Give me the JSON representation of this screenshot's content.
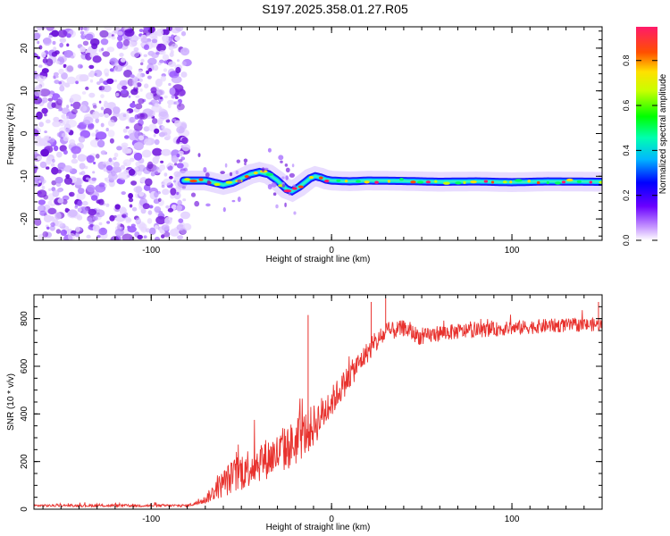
{
  "title": "S197.2025.358.01.27.R05",
  "colors": {
    "snr_line": "#e8322e",
    "noise_purple": "#7a22e0",
    "track_band": "#1a2cff"
  },
  "chart_data": [
    {
      "type": "heatmap",
      "name": "spectrogram",
      "xlabel": "Height of straight line (km)",
      "ylabel": "Frequency (Hz)",
      "xlim": [
        -165,
        150
      ],
      "ylim": [
        -25,
        25
      ],
      "x_ticks": [
        -100,
        0,
        100
      ],
      "x_tick_labels": [
        "-100",
        "0",
        "100"
      ],
      "y_ticks": [
        -20,
        -10,
        0,
        10,
        20
      ],
      "y_tick_labels": [
        "-20",
        "-10",
        "0",
        "10",
        "20"
      ],
      "noise_region_x": [
        -165,
        -80
      ],
      "track": {
        "x": [
          -82,
          -76,
          -70,
          -65,
          -60,
          -55,
          -50,
          -45,
          -40,
          -35,
          -30,
          -25,
          -22,
          -20,
          -18,
          -15,
          -12,
          -9,
          -6,
          -3,
          0,
          10,
          20,
          40,
          60,
          80,
          100,
          120,
          150
        ],
        "freq": [
          -11,
          -11,
          -11,
          -11.5,
          -12,
          -11.5,
          -10.5,
          -9.5,
          -9,
          -9.5,
          -11,
          -13,
          -13.5,
          -13,
          -12.5,
          -11.5,
          -10.5,
          -10,
          -10.3,
          -10.8,
          -11,
          -11.2,
          -11,
          -11.1,
          -11.3,
          -11.2,
          -11.4,
          -11.2,
          -11.3
        ]
      },
      "colorbar": {
        "label": "Normalized spectral amplitude",
        "range": [
          0,
          0.95
        ],
        "ticks": [
          0.0,
          0.2,
          0.4,
          0.6,
          0.8
        ],
        "tick_labels": [
          "0.0",
          "0.2",
          "0.4",
          "0.6",
          "0.8"
        ]
      }
    },
    {
      "type": "line",
      "name": "snr",
      "xlabel": "Height of straight line (km)",
      "ylabel": "SNR (10 * v/v)",
      "xlim": [
        -165,
        150
      ],
      "ylim": [
        0,
        900
      ],
      "x_ticks": [
        -100,
        0,
        100
      ],
      "x_tick_labels": [
        "-100",
        "0",
        "100"
      ],
      "y_ticks": [
        0,
        200,
        400,
        600,
        800
      ],
      "y_tick_labels": [
        "0",
        "200",
        "400",
        "600",
        "800"
      ],
      "envelope": {
        "x": [
          -165,
          -80,
          -75,
          -70,
          -60,
          -50,
          -40,
          -30,
          -20,
          -10,
          0,
          10,
          20,
          30,
          40,
          50,
          60,
          80,
          100,
          120,
          150
        ],
        "mean": [
          15,
          15,
          25,
          40,
          110,
          160,
          200,
          230,
          280,
          350,
          450,
          560,
          660,
          740,
          760,
          720,
          740,
          750,
          760,
          770,
          775
        ],
        "spread": [
          10,
          12,
          15,
          35,
          120,
          170,
          170,
          180,
          200,
          180,
          130,
          110,
          90,
          80,
          70,
          70,
          70,
          60,
          60,
          60,
          55
        ]
      },
      "peaks": [
        {
          "x": -13,
          "y": 815
        },
        {
          "x": 30,
          "y": 885
        },
        {
          "x": 22,
          "y": 870
        },
        {
          "x": 148,
          "y": 870
        }
      ]
    }
  ]
}
